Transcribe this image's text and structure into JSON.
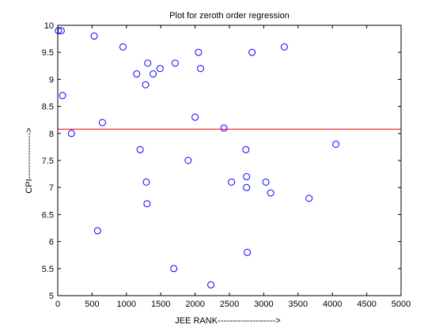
{
  "chart_data": {
    "type": "scatter",
    "title": "Plot for zeroth order regression",
    "xlabel": "JEE RANK-------------------->",
    "ylabel": "CPI---------------->",
    "xlim": [
      0,
      5000
    ],
    "ylim": [
      5,
      10
    ],
    "xticks": [
      "0",
      "500",
      "1000",
      "1500",
      "2000",
      "2500",
      "3000",
      "3500",
      "4000",
      "4500",
      "5000"
    ],
    "yticks": [
      "5",
      "5.5",
      "6",
      "6.5",
      "7",
      "7.5",
      "8",
      "8.5",
      "9",
      "9.5",
      "10"
    ],
    "grid": false,
    "series": [
      {
        "marker": "open-circle",
        "color": "#0000ff",
        "points": [
          [
            10,
            9.9
          ],
          [
            50,
            9.9
          ],
          [
            70,
            8.7
          ],
          [
            200,
            8.0
          ],
          [
            530,
            9.8
          ],
          [
            580,
            6.2
          ],
          [
            650,
            8.2
          ],
          [
            950,
            9.6
          ],
          [
            1150,
            9.1
          ],
          [
            1200,
            7.7
          ],
          [
            1280,
            8.9
          ],
          [
            1290,
            7.1
          ],
          [
            1300,
            6.7
          ],
          [
            1310,
            9.3
          ],
          [
            1390,
            9.1
          ],
          [
            1490,
            9.2
          ],
          [
            1690,
            5.5
          ],
          [
            1710,
            9.3
          ],
          [
            1900,
            7.5
          ],
          [
            2000,
            8.3
          ],
          [
            2050,
            9.5
          ],
          [
            2080,
            9.2
          ],
          [
            2230,
            5.2
          ],
          [
            2420,
            8.1
          ],
          [
            2530,
            7.1
          ],
          [
            2740,
            7.7
          ],
          [
            2750,
            7.2
          ],
          [
            2750,
            7.0
          ],
          [
            2760,
            5.8
          ],
          [
            2830,
            9.5
          ],
          [
            3030,
            7.1
          ],
          [
            3100,
            6.9
          ],
          [
            3300,
            9.6
          ],
          [
            3660,
            6.8
          ],
          [
            4050,
            7.8
          ]
        ]
      }
    ],
    "regression_line": {
      "type": "horizontal",
      "y": 8.08,
      "color": "#ff0000"
    }
  }
}
